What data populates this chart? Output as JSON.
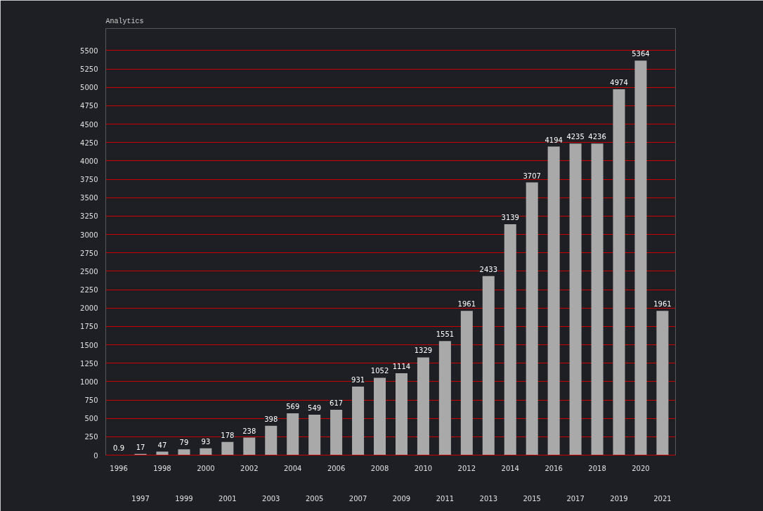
{
  "chart_data": {
    "type": "bar",
    "title": "Analytics",
    "categories": [
      "1996",
      "1997",
      "1998",
      "1999",
      "2000",
      "2001",
      "2002",
      "2003",
      "2004",
      "2005",
      "2006",
      "2007",
      "2008",
      "2009",
      "2010",
      "2011",
      "2012",
      "2013",
      "2014",
      "2015",
      "2016",
      "2017",
      "2018",
      "2019",
      "2020",
      "2021"
    ],
    "values": [
      0.9,
      17,
      47,
      79,
      93,
      178,
      238,
      398,
      569,
      549,
      617,
      931,
      1052,
      1114,
      1329,
      1551,
      1961,
      2433,
      3139,
      3707,
      4194,
      4235,
      4236,
      4974,
      5364,
      1961
    ],
    "data_labels": true,
    "color": "#a9a9a9",
    "ylim": [
      0,
      5800
    ],
    "yticks": [
      0,
      250,
      500,
      750,
      1000,
      1250,
      1500,
      1750,
      2000,
      2250,
      2500,
      2750,
      3000,
      3250,
      3500,
      3750,
      4000,
      4250,
      4500,
      4750,
      5000,
      5250,
      5500
    ],
    "grid": "y"
  }
}
